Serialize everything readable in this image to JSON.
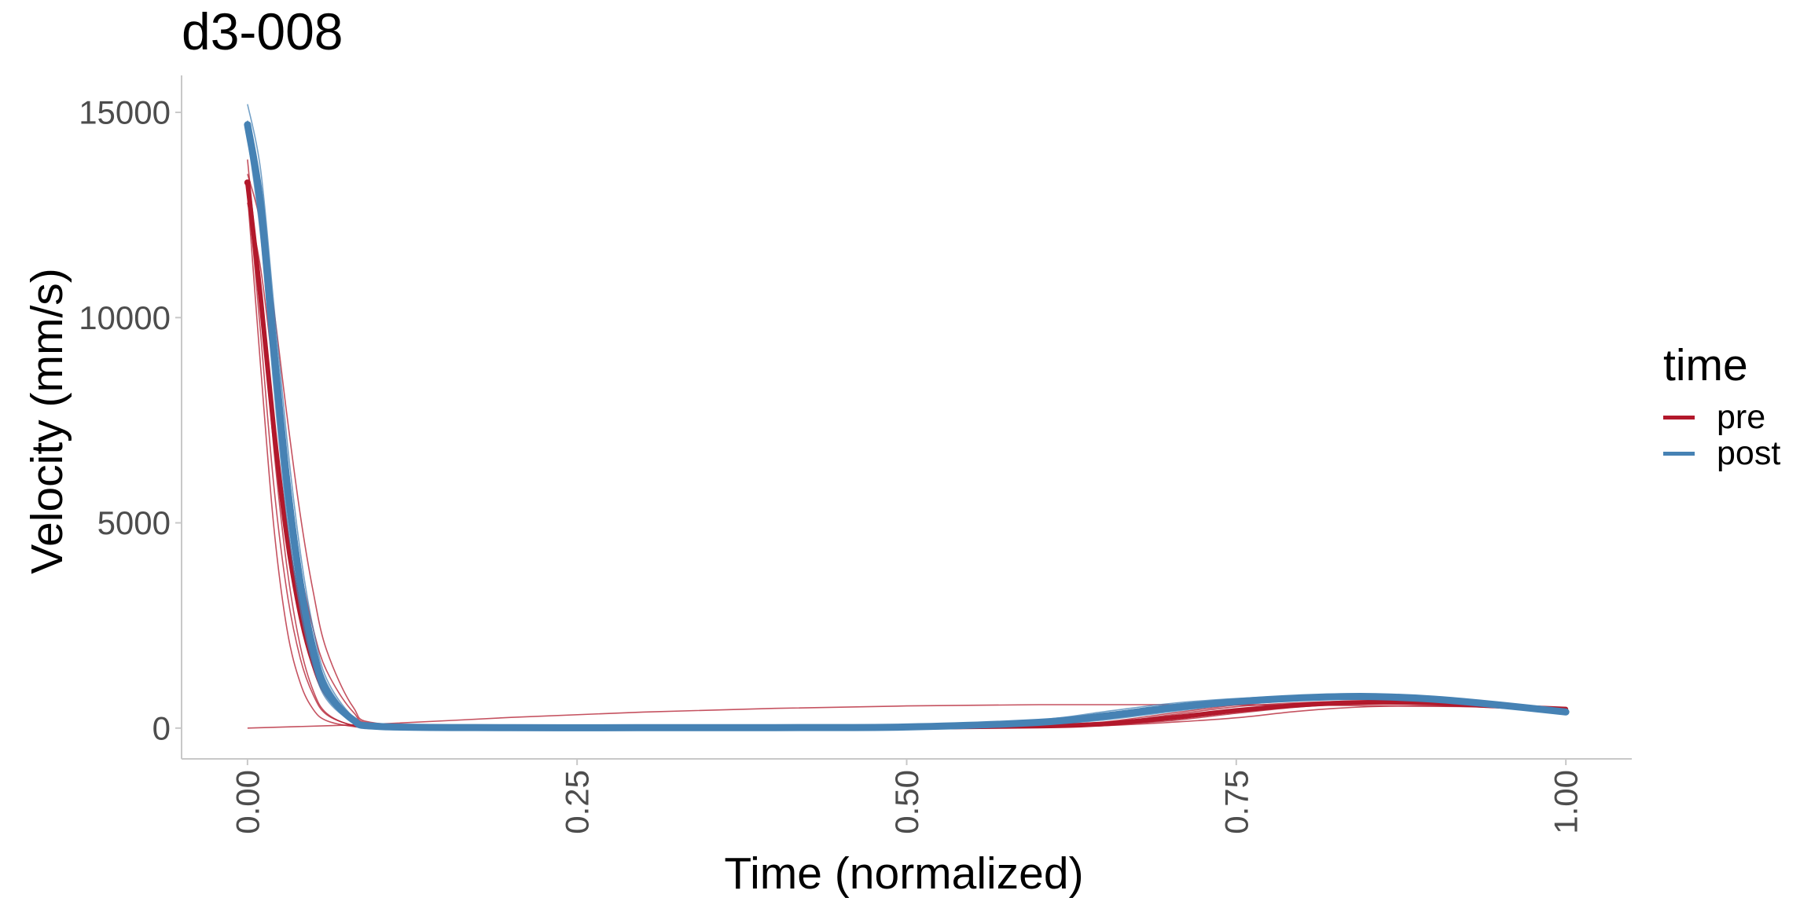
{
  "chart_data": {
    "type": "line",
    "title": "d3-008",
    "xlabel": "Time (normalized)",
    "ylabel": "Velocity (mm/s)",
    "xlim": [
      -0.05,
      1.05
    ],
    "ylim": [
      -750,
      15900
    ],
    "x_ticks": [
      0,
      0.25,
      0.5,
      0.75,
      1.0
    ],
    "x_tick_labels": [
      "0.00",
      "0.25",
      "0.50",
      "0.75",
      "1.00"
    ],
    "y_ticks": [
      0,
      5000,
      10000,
      15000
    ],
    "y_tick_labels": [
      "0",
      "5000",
      "10000",
      "15000"
    ],
    "grid": false,
    "legend": {
      "title": "time",
      "position": "right",
      "entries": [
        {
          "label": "pre",
          "color": "#b2182b"
        },
        {
          "label": "post",
          "color": "#4682b4"
        }
      ]
    },
    "series": [
      {
        "name": "pre",
        "color": "#b2182b",
        "trials": [
          {
            "x": [
              0,
              0.01,
              0.02,
              0.03,
              0.04,
              0.05,
              0.06,
              0.08,
              0.1,
              0.2,
              0.3,
              0.4,
              0.5,
              0.6,
              0.65,
              0.7,
              0.75,
              0.8,
              0.85,
              0.9,
              0.95,
              1.0
            ],
            "y": [
              13850,
              10500,
              6800,
              3900,
              2000,
              900,
              360,
              60,
              20,
              10,
              10,
              12,
              20,
              60,
              120,
              320,
              520,
              620,
              660,
              620,
              520,
              430
            ]
          },
          {
            "x": [
              0,
              0.01,
              0.02,
              0.03,
              0.04,
              0.05,
              0.06,
              0.08,
              0.1,
              0.2,
              0.3,
              0.4,
              0.5,
              0.6,
              0.65,
              0.7,
              0.75,
              0.8,
              0.85,
              0.9,
              0.95,
              1.0
            ],
            "y": [
              13300,
              9600,
              5900,
              3300,
              1700,
              800,
              330,
              70,
              25,
              10,
              10,
              12,
              18,
              40,
              80,
              180,
              360,
              520,
              600,
              590,
              520,
              460
            ]
          },
          {
            "x": [
              0,
              0.01,
              0.02,
              0.03,
              0.04,
              0.05,
              0.06,
              0.08,
              0.1,
              0.2,
              0.3,
              0.4,
              0.5,
              0.6,
              0.65,
              0.7,
              0.75,
              0.8,
              0.85,
              0.9,
              0.95,
              1.0
            ],
            "y": [
              13000,
              8800,
              4900,
              2400,
              1100,
              450,
              180,
              40,
              15,
              8,
              8,
              10,
              15,
              30,
              60,
              140,
              250,
              420,
              520,
              540,
              500,
              480
            ]
          },
          {
            "x": [
              0,
              0.01,
              0.02,
              0.03,
              0.04,
              0.05,
              0.06,
              0.08,
              0.1,
              0.2,
              0.3,
              0.4,
              0.5,
              0.6,
              0.65,
              0.7,
              0.75,
              0.8,
              0.85,
              0.9,
              0.95,
              1.0
            ],
            "y": [
              12800,
              11200,
              8600,
              6000,
              3900,
              2400,
              1400,
              400,
              90,
              15,
              10,
              10,
              18,
              50,
              100,
              250,
              450,
              580,
              640,
              620,
              540,
              470
            ]
          },
          {
            "x": [
              0,
              0.01,
              0.02,
              0.03,
              0.04,
              0.05,
              0.06,
              0.08,
              0.1,
              0.2,
              0.3,
              0.4,
              0.5,
              0.6,
              0.65,
              0.7,
              0.75,
              0.8,
              0.85,
              0.9,
              0.95,
              1.0
            ],
            "y": [
              13500,
              12300,
              10200,
              7600,
              5200,
              3300,
              1900,
              520,
              110,
              18,
              10,
              10,
              20,
              70,
              150,
              360,
              560,
              680,
              720,
              680,
              580,
              480
            ]
          },
          {
            "x": [
              0,
              0.1,
              0.2,
              0.3,
              0.4,
              0.5,
              0.6,
              0.7,
              0.8,
              0.9,
              1.0
            ],
            "y": [
              0,
              100,
              260,
              390,
              480,
              540,
              570,
              570,
              560,
              530,
              500
            ]
          }
        ]
      },
      {
        "name": "post",
        "color": "#4682b4",
        "trials": [
          {
            "x": [
              0,
              0.01,
              0.02,
              0.03,
              0.04,
              0.05,
              0.06,
              0.08,
              0.1,
              0.2,
              0.3,
              0.4,
              0.5,
              0.6,
              0.65,
              0.7,
              0.75,
              0.8,
              0.85,
              0.9,
              0.95,
              1.0
            ],
            "y": [
              14700,
              12800,
              9300,
              6000,
              3600,
              1900,
              900,
              200,
              40,
              10,
              10,
              12,
              25,
              120,
              260,
              460,
              620,
              720,
              760,
              700,
              570,
              400
            ]
          },
          {
            "x": [
              0,
              0.01,
              0.02,
              0.03,
              0.04,
              0.05,
              0.06,
              0.08,
              0.1,
              0.2,
              0.3,
              0.4,
              0.5,
              0.6,
              0.65,
              0.7,
              0.75,
              0.8,
              0.85,
              0.9,
              0.95,
              1.0
            ],
            "y": [
              14600,
              12300,
              8600,
              5400,
              3100,
              1600,
              750,
              160,
              30,
              10,
              10,
              12,
              30,
              150,
              320,
              520,
              660,
              750,
              780,
              710,
              560,
              380
            ]
          },
          {
            "x": [
              0,
              0.01,
              0.02,
              0.03,
              0.04,
              0.05,
              0.06,
              0.08,
              0.1,
              0.2,
              0.3,
              0.4,
              0.5,
              0.6,
              0.65,
              0.7,
              0.75,
              0.8,
              0.85,
              0.9,
              0.95,
              1.0
            ],
            "y": [
              14800,
              13200,
              9900,
              6600,
              4000,
              2200,
              1100,
              250,
              50,
              12,
              10,
              12,
              22,
              100,
              220,
              420,
              590,
              700,
              740,
              690,
              560,
              420
            ]
          },
          {
            "x": [
              0,
              0.01,
              0.02,
              0.03,
              0.04,
              0.05,
              0.06,
              0.08,
              0.1,
              0.2,
              0.3,
              0.4,
              0.5,
              0.6,
              0.65,
              0.7,
              0.75,
              0.8,
              0.85,
              0.9,
              0.95,
              1.0
            ],
            "y": [
              14500,
              12600,
              9000,
              5700,
              3300,
              1700,
              800,
              180,
              35,
              10,
              10,
              12,
              28,
              180,
              360,
              560,
              690,
              770,
              800,
              720,
              560,
              360
            ]
          },
          {
            "x": [
              0,
              0.01,
              0.02,
              0.03,
              0.04,
              0.05,
              0.06,
              0.08,
              0.1,
              0.2,
              0.3,
              0.4,
              0.5,
              0.6,
              0.65,
              0.7,
              0.75,
              0.8,
              0.85,
              0.9,
              0.95,
              1.0
            ],
            "y": [
              15200,
              13600,
              10300,
              7000,
              4300,
              2400,
              1200,
              280,
              55,
              12,
              10,
              12,
              24,
              90,
              200,
              400,
              580,
              690,
              730,
              680,
              560,
              440
            ]
          },
          {
            "x": [
              0,
              0.01,
              0.02,
              0.03,
              0.04,
              0.05,
              0.06,
              0.08,
              0.1,
              0.2,
              0.3,
              0.4,
              0.5,
              0.6,
              0.65,
              0.7,
              0.75,
              0.8,
              0.85,
              0.9,
              0.95,
              1.0
            ],
            "y": [
              14400,
              12000,
              8300,
              5100,
              2900,
              1500,
              700,
              150,
              30,
              10,
              10,
              12,
              32,
              200,
              400,
              600,
              720,
              790,
              810,
              730,
              560,
              350
            ]
          }
        ]
      }
    ]
  }
}
